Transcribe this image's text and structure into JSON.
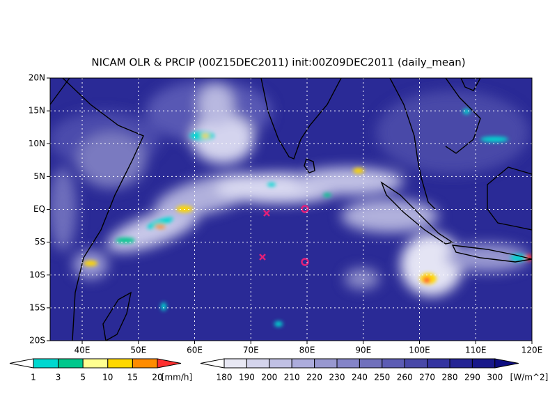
{
  "title": "NICAM OLR & PRCIP (00Z15DEC2011) init:00Z09DEC2011 (daily_mean)",
  "map": {
    "xlim": [
      34.3,
      120
    ],
    "ylim": [
      -20,
      20
    ],
    "lon_ticks": [
      {
        "value": 40,
        "label": "40E"
      },
      {
        "value": 50,
        "label": "50E"
      },
      {
        "value": 60,
        "label": "60E"
      },
      {
        "value": 70,
        "label": "70E"
      },
      {
        "value": 80,
        "label": "80E"
      },
      {
        "value": 90,
        "label": "90E"
      },
      {
        "value": 100,
        "label": "100E"
      },
      {
        "value": 110,
        "label": "110E"
      },
      {
        "value": 120,
        "label": "120E"
      }
    ],
    "lat_ticks": [
      {
        "value": 20,
        "label": "20N"
      },
      {
        "value": 15,
        "label": "15N"
      },
      {
        "value": 10,
        "label": "10N"
      },
      {
        "value": 5,
        "label": "5N"
      },
      {
        "value": 0,
        "label": "EQ"
      },
      {
        "value": -5,
        "label": "5S"
      },
      {
        "value": -10,
        "label": "10S"
      },
      {
        "value": -15,
        "label": "15S"
      },
      {
        "value": -20,
        "label": "20S"
      }
    ]
  },
  "precip_colorbar": {
    "levels": [
      1,
      3,
      5,
      10,
      15,
      20
    ],
    "unit": "[mm/h]",
    "colors": [
      "#ffffff",
      "#00d8d0",
      "#00c88c",
      "#ffff90",
      "#ffd800",
      "#ff8c00",
      "#ff3030"
    ]
  },
  "olr_colorbar": {
    "levels": [
      180,
      190,
      200,
      210,
      220,
      230,
      240,
      250,
      260,
      270,
      280,
      290,
      300
    ],
    "unit": "[W/m^2]",
    "colors": [
      "#ffffff",
      "#e8e8f4",
      "#d4d4ec",
      "#c0c0e4",
      "#acacdc",
      "#9898d0",
      "#8484c8",
      "#7070bc",
      "#5c5cb4",
      "#4848a8",
      "#3434a0",
      "#242494",
      "#18188a",
      "#0c0c80"
    ]
  }
}
